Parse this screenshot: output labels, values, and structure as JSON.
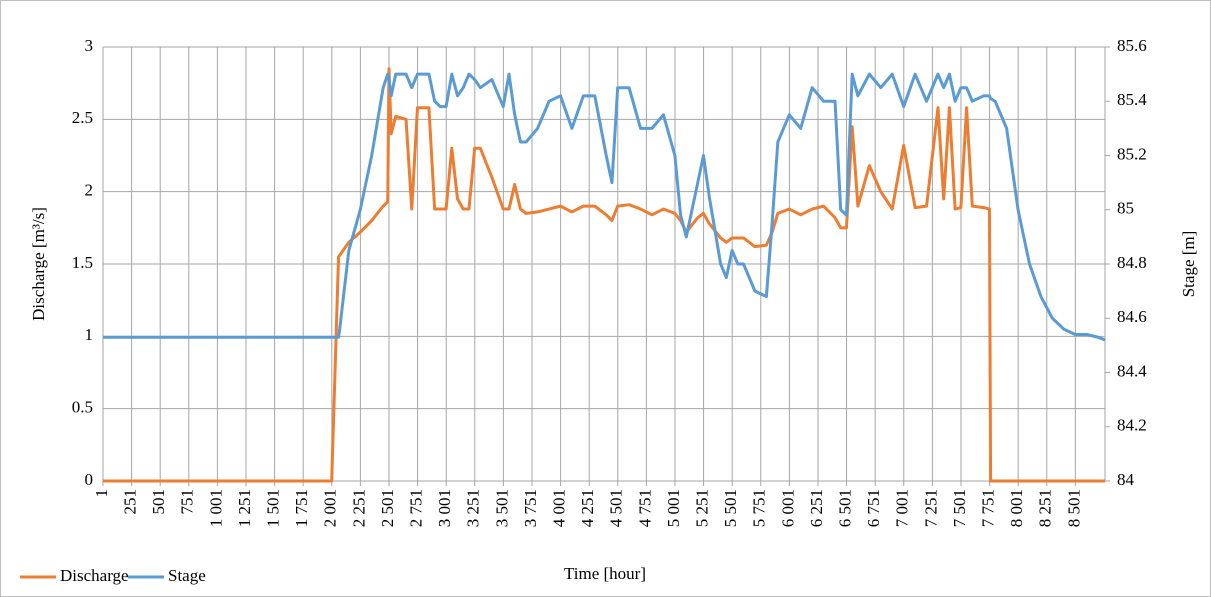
{
  "chart_data": {
    "type": "line",
    "x_label": "Time [hour]",
    "y_label": "Discharge [m³/s]",
    "y2_label": "Stage [m]",
    "grid": true,
    "legend": "bottom-left",
    "xlim": [
      1,
      8760
    ],
    "xticks": [
      1,
      251,
      501,
      751,
      {
        "value": 1001,
        "label": "1 001"
      },
      {
        "value": 1251,
        "label": "1 251"
      },
      {
        "value": 1501,
        "label": "1 501"
      },
      {
        "value": 1751,
        "label": "1 751"
      },
      {
        "value": 2001,
        "label": "2 001"
      },
      {
        "value": 2251,
        "label": "2 251"
      },
      {
        "value": 2501,
        "label": "2 501"
      },
      {
        "value": 2751,
        "label": "2 751"
      },
      {
        "value": 3001,
        "label": "3 001"
      },
      {
        "value": 3251,
        "label": "3 251"
      },
      {
        "value": 3501,
        "label": "3 501"
      },
      {
        "value": 3751,
        "label": "3 751"
      },
      {
        "value": 4001,
        "label": "4 001"
      },
      {
        "value": 4251,
        "label": "4 251"
      },
      {
        "value": 4501,
        "label": "4 501"
      },
      {
        "value": 4751,
        "label": "4 751"
      },
      {
        "value": 5001,
        "label": "5 001"
      },
      {
        "value": 5251,
        "label": "5 251"
      },
      {
        "value": 5501,
        "label": "5 501"
      },
      {
        "value": 5751,
        "label": "5 751"
      },
      {
        "value": 6001,
        "label": "6 001"
      },
      {
        "value": 6251,
        "label": "6 251"
      },
      {
        "value": 6501,
        "label": "6 501"
      },
      {
        "value": 6751,
        "label": "6 751"
      },
      {
        "value": 7001,
        "label": "7 001"
      },
      {
        "value": 7251,
        "label": "7 251"
      },
      {
        "value": 7501,
        "label": "7 501"
      },
      {
        "value": 7751,
        "label": "7 751"
      },
      {
        "value": 8001,
        "label": "8 001"
      },
      {
        "value": 8251,
        "label": "8 251"
      },
      {
        "value": 8501,
        "label": "8 501"
      }
    ],
    "ylim": [
      0,
      3
    ],
    "yticks": [
      0,
      0.5,
      1,
      1.5,
      2,
      2.5,
      3
    ],
    "y2lim": [
      84,
      85.6
    ],
    "y2ticks": [
      84,
      84.2,
      84.4,
      84.6,
      84.8,
      85,
      85.2,
      85.4,
      85.6
    ],
    "x": [
      1,
      500,
      1000,
      1500,
      2000,
      2060,
      2070,
      2150,
      2250,
      2350,
      2450,
      2490,
      2501,
      2520,
      2560,
      2650,
      2700,
      2750,
      2850,
      2900,
      2950,
      3000,
      3050,
      3100,
      3150,
      3200,
      3250,
      3300,
      3400,
      3500,
      3550,
      3600,
      3650,
      3700,
      3800,
      3900,
      4000,
      4100,
      4200,
      4300,
      4400,
      4450,
      4500,
      4600,
      4700,
      4800,
      4900,
      5000,
      5050,
      5100,
      5200,
      5250,
      5300,
      5400,
      5450,
      5500,
      5550,
      5600,
      5700,
      5800,
      5850,
      5900,
      6000,
      6100,
      6200,
      6300,
      6400,
      6450,
      6500,
      6550,
      6600,
      6700,
      6800,
      6900,
      7000,
      7100,
      7200,
      7300,
      7350,
      7400,
      7450,
      7500,
      7550,
      7600,
      7700,
      7750,
      7760,
      7800,
      7900,
      8000,
      8100,
      8200,
      8300,
      8400,
      8500,
      8600,
      8700,
      8760
    ],
    "series": [
      {
        "name": "Discharge",
        "color": "#ed7d31",
        "values": [
          0,
          0,
          0,
          0,
          0,
          1.55,
          1.56,
          1.65,
          1.72,
          1.8,
          1.9,
          1.93,
          2.85,
          2.4,
          2.52,
          2.5,
          1.88,
          2.58,
          2.58,
          1.88,
          1.88,
          1.88,
          2.3,
          1.95,
          1.88,
          1.88,
          2.3,
          2.3,
          2.1,
          1.88,
          1.88,
          2.05,
          1.88,
          1.85,
          1.86,
          1.88,
          1.9,
          1.86,
          1.9,
          1.9,
          1.84,
          1.8,
          1.9,
          1.91,
          1.88,
          1.84,
          1.88,
          1.85,
          1.8,
          1.72,
          1.82,
          1.85,
          1.78,
          1.68,
          1.65,
          1.68,
          1.68,
          1.68,
          1.62,
          1.63,
          1.72,
          1.85,
          1.88,
          1.84,
          1.88,
          1.9,
          1.82,
          1.75,
          1.75,
          2.45,
          1.9,
          2.18,
          2.0,
          1.88,
          2.32,
          1.89,
          1.9,
          2.58,
          1.95,
          2.58,
          1.88,
          1.89,
          2.58,
          1.9,
          1.89,
          1.88,
          0,
          0,
          0,
          0,
          0,
          0,
          0,
          0,
          0,
          0,
          0,
          0
        ]
      },
      {
        "name": "Stage",
        "color": "#5b9bd5",
        "axis": "y2",
        "values": [
          84.53,
          84.53,
          84.53,
          84.53,
          84.53,
          84.53,
          84.56,
          84.85,
          85.0,
          85.2,
          85.45,
          85.5,
          85.48,
          85.42,
          85.5,
          85.5,
          85.45,
          85.5,
          85.5,
          85.4,
          85.38,
          85.38,
          85.5,
          85.42,
          85.45,
          85.5,
          85.48,
          85.45,
          85.48,
          85.38,
          85.5,
          85.35,
          85.25,
          85.25,
          85.3,
          85.4,
          85.42,
          85.3,
          85.42,
          85.42,
          85.2,
          85.1,
          85.45,
          85.45,
          85.3,
          85.3,
          85.35,
          85.2,
          84.98,
          84.9,
          85.1,
          85.2,
          85.05,
          84.8,
          84.75,
          84.85,
          84.8,
          84.8,
          84.7,
          84.68,
          84.95,
          85.25,
          85.35,
          85.3,
          85.45,
          85.4,
          85.4,
          85.0,
          84.98,
          85.5,
          85.42,
          85.5,
          85.45,
          85.5,
          85.38,
          85.5,
          85.4,
          85.5,
          85.45,
          85.5,
          85.4,
          85.45,
          85.45,
          85.4,
          85.42,
          85.42,
          85.41,
          85.4,
          85.3,
          85.0,
          84.8,
          84.68,
          84.6,
          84.56,
          84.54,
          84.54,
          84.53,
          84.52
        ]
      }
    ]
  }
}
